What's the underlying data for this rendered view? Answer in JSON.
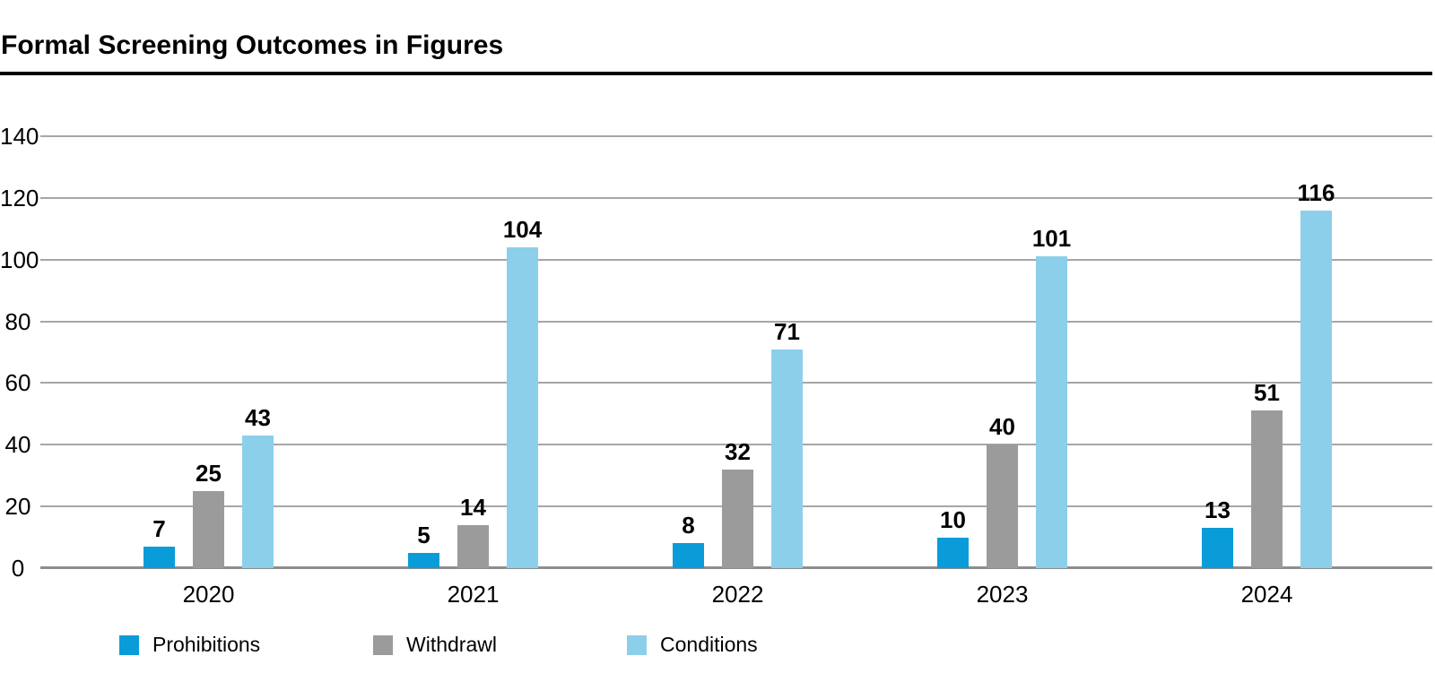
{
  "title": "Formal Screening Outcomes in Figures",
  "chart_data": {
    "type": "bar",
    "title": "Formal Screening Outcomes in Figures",
    "categories": [
      "2020",
      "2021",
      "2022",
      "2023",
      "2024"
    ],
    "series": [
      {
        "name": "Prohibitions",
        "color": "#0a9cd8",
        "values": [
          7,
          5,
          8,
          10,
          13
        ]
      },
      {
        "name": "Withdrawl",
        "color": "#9b9b9b",
        "values": [
          25,
          14,
          32,
          40,
          51
        ]
      },
      {
        "name": "Conditions",
        "color": "#8ccfeb",
        "values": [
          43,
          104,
          71,
          101,
          116
        ]
      }
    ],
    "xlabel": "",
    "ylabel": "",
    "ylim": [
      0,
      140
    ],
    "y_ticks": [
      0,
      20,
      40,
      60,
      80,
      100,
      120,
      140
    ],
    "grid": "horizontal",
    "legend_position": "bottom-left",
    "value_labels": "above-bars"
  },
  "colors": {
    "background": "#ffffff",
    "grid": "#a6a6a6",
    "axis": "#8d8d8d",
    "rule": "#000000",
    "text": "#000000"
  }
}
